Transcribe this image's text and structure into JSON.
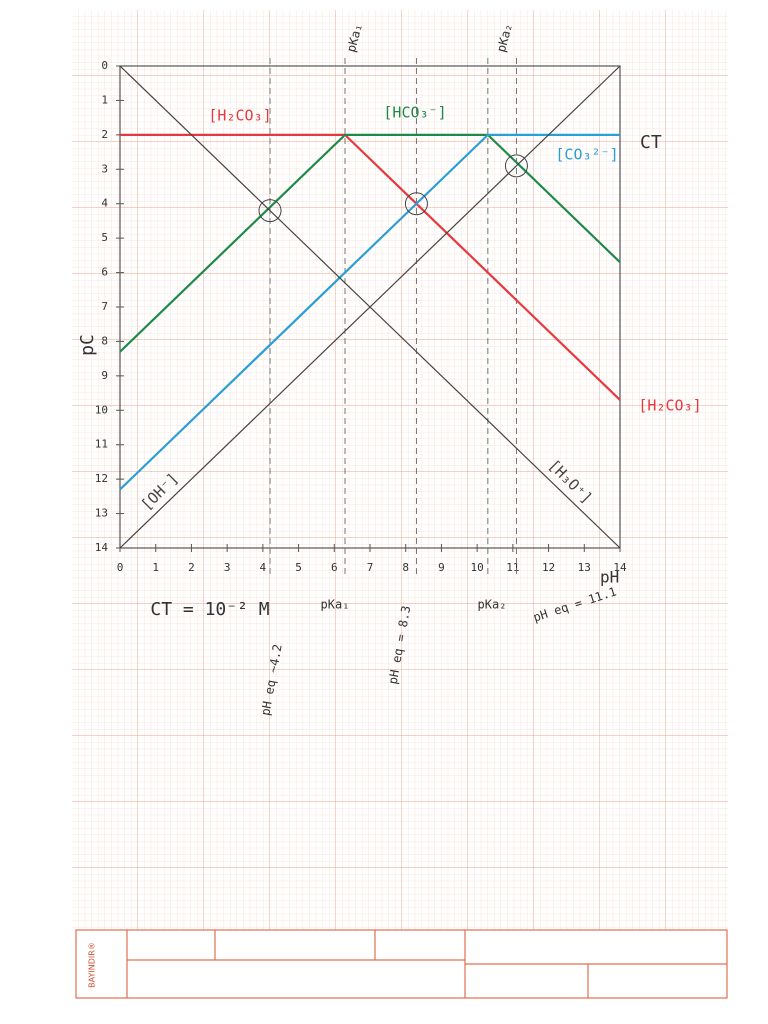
{
  "chart_data": {
    "type": "line",
    "x_label": "pH",
    "y_label": "pC",
    "x": [
      0,
      6.3,
      10.3,
      14
    ],
    "series": [
      {
        "name": "[H₂CO₃]",
        "color": "#e8383d",
        "values": [
          2,
          2,
          6,
          9.7
        ]
      },
      {
        "name": "[HCO₃⁻]",
        "color": "#1e8a4a",
        "values": [
          8.3,
          2,
          2,
          5.7
        ]
      },
      {
        "name": "[CO₃²⁻]",
        "color": "#2a9fd6",
        "values": [
          12.3,
          6,
          2,
          2
        ]
      },
      {
        "name": "[OH⁻]",
        "color": "#444444",
        "values": [
          14,
          7.7,
          3.7,
          0
        ]
      },
      {
        "name": "[H₃O⁺]",
        "color": "#444444",
        "values": [
          0,
          6.3,
          10.3,
          14
        ]
      }
    ],
    "xlim": [
      0,
      14
    ],
    "ylim": [
      0,
      14
    ],
    "y_inverted": true,
    "xticks": [
      0,
      1,
      2,
      3,
      4,
      5,
      6,
      7,
      8,
      9,
      10,
      11,
      12,
      13,
      14
    ],
    "yticks": [
      0,
      1,
      2,
      3,
      4,
      5,
      6,
      7,
      8,
      9,
      10,
      11,
      12,
      13,
      14
    ],
    "reference_lines": [
      {
        "value": 4.2,
        "label": "pH eq ~4.2"
      },
      {
        "value": 6.3,
        "label": "pKa₁"
      },
      {
        "value": 8.3,
        "label": "pH eq = 8.3"
      },
      {
        "value": 10.3,
        "label": "pKa₂"
      },
      {
        "value": 11.1,
        "label": "pH eq = 11.1"
      }
    ],
    "equivalence_points": {
      "x": [
        4.2,
        8.3,
        11.1
      ],
      "y": [
        4.2,
        4,
        2.9
      ]
    },
    "annotations": [
      "CT",
      "CT = 10⁻² M"
    ]
  },
  "brand": "BAYINDIR®"
}
